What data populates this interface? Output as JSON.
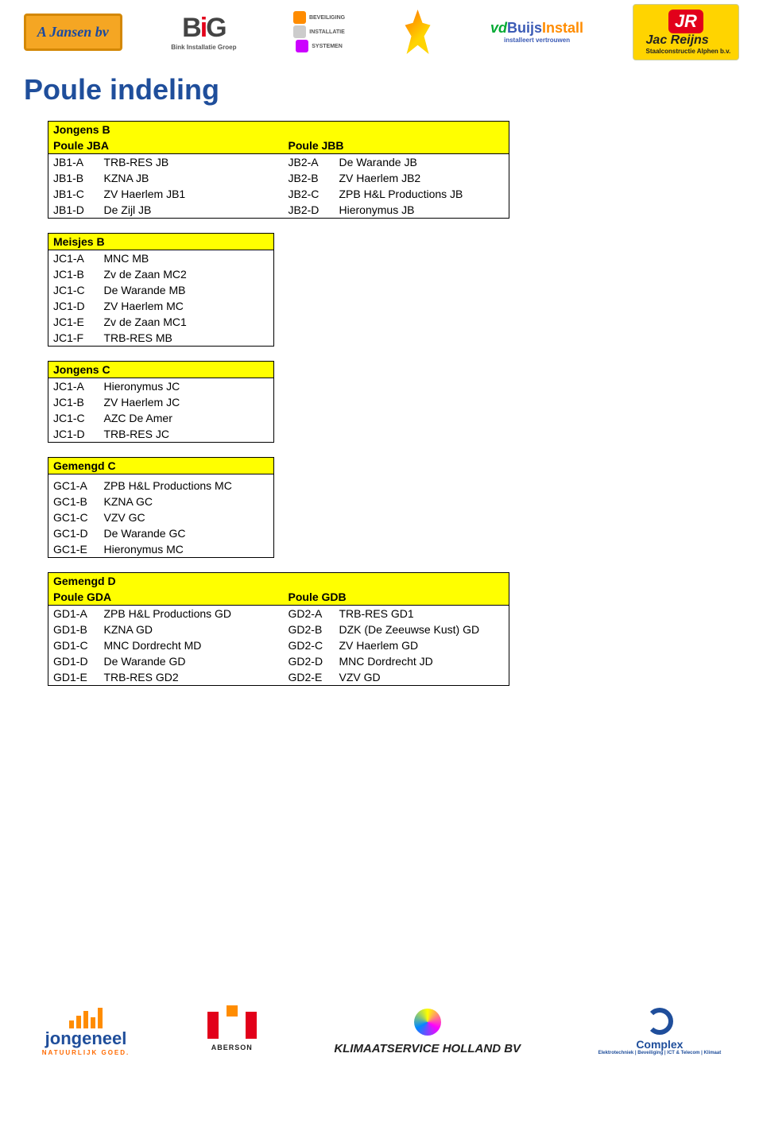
{
  "page_title": "Poule indeling",
  "sponsors_top": {
    "jansen": "A Jansen bv",
    "big_sub": "Bink Installatie Groep",
    "icons": [
      "BEVEILIGING",
      "INSTALLATIE",
      "SYSTEMEN"
    ],
    "vdb_vd": "vd",
    "vdb_buijs": "Buijs",
    "vdb_install": "Install",
    "vdb_sub": "installeert vertrouwen",
    "jac_name": "Jac Reijns",
    "jac_sub": "Staalconstructie Alphen b.v."
  },
  "sponsors_bottom": {
    "jongeneel": "jongeneel",
    "jongeneel_sub": "NATUURLIJK GOED.",
    "aberson": "ABERSON",
    "klimaat": "KLIMAATSERVICE HOLLAND BV",
    "complex": "Complex",
    "complex_sub": "Elektrotechniek | Beveiliging | ICT & Telecom | Klimaat"
  },
  "jongens_b": {
    "title": "Jongens B",
    "left_title": "Poule JBA",
    "right_title": "Poule JBB",
    "left": [
      {
        "code": "JB1-A",
        "team": "TRB-RES JB"
      },
      {
        "code": "JB1-B",
        "team": "KZNA JB"
      },
      {
        "code": "JB1-C",
        "team": "ZV Haerlem JB1"
      },
      {
        "code": "JB1-D",
        "team": "De Zijl JB"
      }
    ],
    "right": [
      {
        "code": "JB2-A",
        "team": "De Warande JB"
      },
      {
        "code": "JB2-B",
        "team": "ZV Haerlem JB2"
      },
      {
        "code": "JB2-C",
        "team": "ZPB H&L Productions JB"
      },
      {
        "code": "JB2-D",
        "team": "Hieronymus JB"
      }
    ]
  },
  "meisjes_b": {
    "title": "Meisjes B",
    "rows": [
      {
        "code": "JC1-A",
        "team": "MNC MB"
      },
      {
        "code": "JC1-B",
        "team": "Zv de Zaan MC2"
      },
      {
        "code": "JC1-C",
        "team": "De Warande MB"
      },
      {
        "code": "JC1-D",
        "team": "ZV Haerlem MC"
      },
      {
        "code": "JC1-E",
        "team": "Zv de Zaan MC1"
      },
      {
        "code": "JC1-F",
        "team": "TRB-RES MB"
      }
    ]
  },
  "jongens_c": {
    "title": "Jongens C",
    "rows": [
      {
        "code": "JC1-A",
        "team": "Hieronymus JC"
      },
      {
        "code": "JC1-B",
        "team": "ZV Haerlem JC"
      },
      {
        "code": "JC1-C",
        "team": "AZC De Amer"
      },
      {
        "code": "JC1-D",
        "team": "TRB-RES JC"
      }
    ]
  },
  "gemengd_c": {
    "title": "Gemengd C",
    "rows": [
      {
        "code": "GC1-A",
        "team": "ZPB H&L Productions MC"
      },
      {
        "code": "GC1-B",
        "team": "KZNA GC"
      },
      {
        "code": "GC1-C",
        "team": "VZV GC"
      },
      {
        "code": "GC1-D",
        "team": "De Warande GC"
      },
      {
        "code": "GC1-E",
        "team": "Hieronymus MC"
      }
    ]
  },
  "gemengd_d": {
    "title": "Gemengd D",
    "left_title": "Poule GDA",
    "right_title": "Poule GDB",
    "left": [
      {
        "code": "GD1-A",
        "team": "ZPB H&L Productions GD"
      },
      {
        "code": "GD1-B",
        "team": "KZNA GD"
      },
      {
        "code": "GD1-C",
        "team": "MNC Dordrecht MD"
      },
      {
        "code": "GD1-D",
        "team": "De Warande GD"
      },
      {
        "code": "GD1-E",
        "team": "TRB-RES GD2"
      }
    ],
    "right": [
      {
        "code": "GD2-A",
        "team": "TRB-RES GD1"
      },
      {
        "code": "GD2-B",
        "team": "DZK (De Zeeuwse Kust) GD"
      },
      {
        "code": "GD2-C",
        "team": "ZV Haerlem GD"
      },
      {
        "code": "GD2-D",
        "team": "MNC Dordrecht JD"
      },
      {
        "code": "GD2-E",
        "team": "VZV GD"
      }
    ]
  },
  "colors": {
    "header_bg": "#ffff00",
    "title_color": "#1f4e9b",
    "border": "#000000"
  }
}
